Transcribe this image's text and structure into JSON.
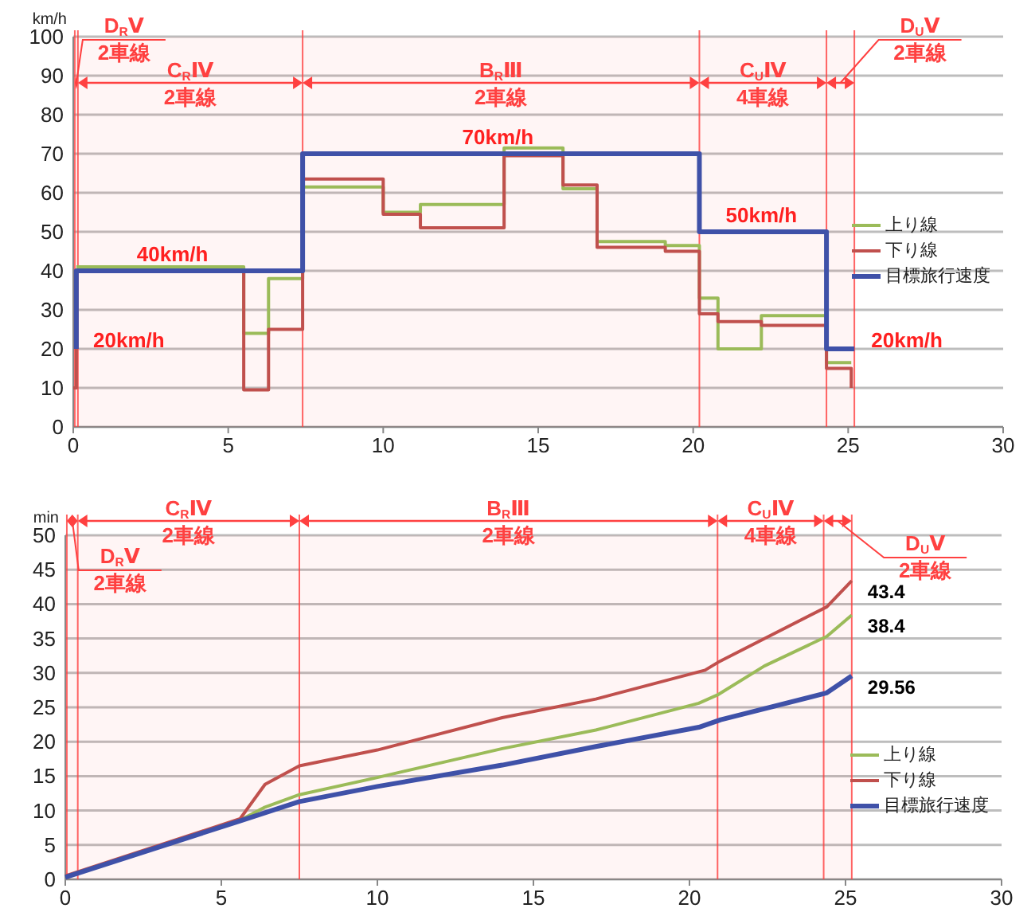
{
  "chart_data": [
    {
      "type": "step",
      "ylabel": "km/h",
      "xlim": [
        0,
        30
      ],
      "xticks": [
        0,
        5,
        10,
        15,
        20,
        25,
        30
      ],
      "ylim": [
        0,
        100
      ],
      "yticks": [
        0,
        10,
        20,
        30,
        40,
        50,
        60,
        70,
        80,
        90,
        100
      ],
      "grid": "y",
      "legend": "right",
      "series": [
        {
          "name": "上り線",
          "color": "#9bbb59",
          "x": [
            0.1,
            5.5,
            6.3,
            7.4,
            10,
            11.2,
            13.9,
            15.8,
            16.9,
            19.1,
            20.2,
            20.8,
            22.2,
            24.3,
            25.1
          ],
          "values": [
            41,
            24,
            38,
            61.5,
            55,
            57,
            71.5,
            61,
            47.5,
            46.5,
            33,
            20,
            28.5,
            16.5,
            16.5
          ]
        },
        {
          "name": "下り線",
          "color": "#c0504d",
          "x": [
            0,
            0.1,
            5.5,
            6.3,
            7.4,
            10,
            11.2,
            13.9,
            15.8,
            16.9,
            19.1,
            20.2,
            20.8,
            22.2,
            24.3,
            25.1
          ],
          "values": [
            10,
            40,
            9.5,
            25,
            63.5,
            54.5,
            51,
            69.5,
            62,
            46,
            45,
            29,
            27,
            26,
            15,
            10
          ]
        },
        {
          "name": "目標旅行速度",
          "color": "#3f51a8",
          "x": [
            0.1,
            0.1,
            7.4,
            20.2,
            24.3,
            25.2
          ],
          "values": [
            20,
            40,
            70,
            50,
            20,
            20
          ]
        }
      ],
      "ref_lines": [
        {
          "axis": "x",
          "value": 0.05,
          "color": "#ff4040"
        },
        {
          "axis": "x",
          "value": 0.15,
          "color": "#ff4040"
        },
        {
          "axis": "x",
          "value": 7.4,
          "color": "#ff4040"
        },
        {
          "axis": "x",
          "value": 20.2,
          "color": "#ff4040"
        },
        {
          "axis": "x",
          "value": 24.3,
          "color": "#ff4040"
        },
        {
          "axis": "x",
          "value": 25.2,
          "color": "#ff4040"
        }
      ],
      "bands": [
        {
          "axis": "x",
          "from": 0.05,
          "to": 0.15,
          "color": "#ff4040",
          "label": "D$_{R}$Ⅴ\n2車線"
        },
        {
          "axis": "x",
          "from": 0.15,
          "to": 7.4,
          "color": "#ff4040",
          "label": "C$_{R}$Ⅳ\n2車線"
        },
        {
          "axis": "x",
          "from": 7.4,
          "to": 20.2,
          "color": "#ff4040",
          "label": "B$_{R}$Ⅲ\n2車線"
        },
        {
          "axis": "x",
          "from": 20.2,
          "to": 24.3,
          "color": "#ff4040",
          "label": "C$_{U}$Ⅳ\n4車線"
        },
        {
          "axis": "x",
          "from": 24.3,
          "to": 25.2,
          "color": "#ff4040",
          "label": "D$_{U}$Ⅴ\n2車線"
        }
      ],
      "annotations": [
        {
          "text": "40km/h",
          "x": 3.2,
          "y": 40
        },
        {
          "text": "70km/h",
          "x": 13.7,
          "y": 70
        },
        {
          "text": "50km/h",
          "x": 22.2,
          "y": 50
        },
        {
          "text": "20km/h",
          "x": 0.1,
          "y": 20
        },
        {
          "text": "20km/h",
          "x": 25.2,
          "y": 20
        }
      ]
    },
    {
      "type": "line",
      "ylabel": "min",
      "xlim": [
        0,
        30
      ],
      "xticks": [
        0,
        5,
        10,
        15,
        20,
        25,
        30
      ],
      "ylim": [
        0,
        50
      ],
      "yticks": [
        0,
        5,
        10,
        15,
        20,
        25,
        30,
        35,
        40,
        45,
        50
      ],
      "grid": "y",
      "legend": "bottom right",
      "series": [
        {
          "name": "上り線",
          "color": "#9bbb59",
          "x": [
            0,
            5.6,
            6.4,
            7.5,
            10,
            14,
            17,
            20.3,
            20.9,
            22.4,
            24.4,
            25.2
          ],
          "values": [
            0.3,
            8.6,
            10.5,
            12.3,
            14.8,
            19,
            21.7,
            25.6,
            26.8,
            31,
            35.3,
            38.4
          ],
          "value_labels": [
            null,
            null,
            null,
            null,
            null,
            null,
            null,
            null,
            null,
            null,
            null,
            "38.4"
          ]
        },
        {
          "name": "下り線",
          "color": "#c0504d",
          "x": [
            0,
            5.6,
            6.4,
            7.5,
            10,
            14,
            17,
            20.5,
            20.9,
            24.4,
            25.2
          ],
          "values": [
            0.5,
            8.8,
            13.8,
            16.5,
            18.8,
            23.5,
            26.2,
            30.4,
            31.5,
            39.6,
            43.4
          ],
          "value_labels": [
            null,
            null,
            null,
            null,
            null,
            null,
            null,
            null,
            null,
            null,
            "43.4"
          ]
        },
        {
          "name": "目標旅行速度",
          "color": "#3f51a8",
          "x": [
            0,
            5.6,
            7.5,
            10,
            14,
            17,
            20.3,
            21,
            24.4,
            25.2
          ],
          "values": [
            0.3,
            8.5,
            11.3,
            13.5,
            16.6,
            19.3,
            22.1,
            23.2,
            27.1,
            29.56
          ],
          "value_labels": [
            null,
            null,
            null,
            null,
            null,
            null,
            null,
            null,
            null,
            "29.56"
          ]
        }
      ],
      "ref_lines": [
        {
          "axis": "x",
          "value": 0.05,
          "color": "#ff4040"
        },
        {
          "axis": "x",
          "value": 0.4,
          "color": "#ff4040"
        },
        {
          "axis": "x",
          "value": 7.5,
          "color": "#ff4040"
        },
        {
          "axis": "x",
          "value": 20.9,
          "color": "#ff4040"
        },
        {
          "axis": "x",
          "value": 24.3,
          "color": "#ff4040"
        },
        {
          "axis": "x",
          "value": 25.2,
          "color": "#ff4040"
        }
      ],
      "bands": [
        {
          "axis": "x",
          "from": 0.05,
          "to": 0.4,
          "color": "#ff4040",
          "label": "D$_{R}$Ⅴ\n2車線"
        },
        {
          "axis": "x",
          "from": 0.4,
          "to": 7.5,
          "color": "#ff4040",
          "label": "C$_{R}$Ⅳ\n2車線"
        },
        {
          "axis": "x",
          "from": 7.5,
          "to": 20.9,
          "color": "#ff4040",
          "label": "B$_{R}$Ⅲ\n2車線"
        },
        {
          "axis": "x",
          "from": 20.9,
          "to": 24.3,
          "color": "#ff4040",
          "label": "C$_{U}$Ⅳ\n4車線"
        },
        {
          "axis": "x",
          "from": 24.3,
          "to": 25.2,
          "color": "#ff4040",
          "label": "D$_{U}$Ⅴ\n2車線"
        }
      ]
    }
  ]
}
